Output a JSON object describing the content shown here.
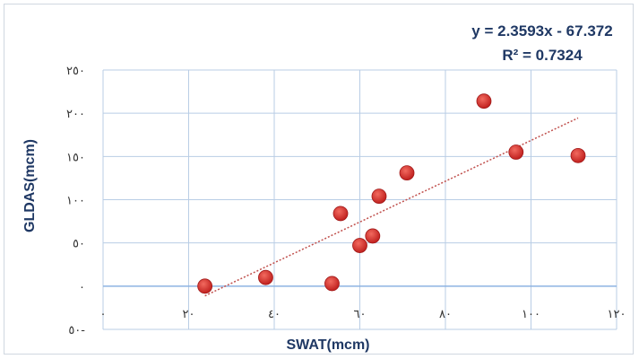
{
  "chart_data": {
    "type": "scatter",
    "xlabel": "SWAT(mcm)",
    "ylabel": "GLDAS(mcm)",
    "xlim": [
      0,
      120
    ],
    "ylim": [
      -50,
      250
    ],
    "x_ticks": [
      {
        "value": 0,
        "label": "٠"
      },
      {
        "value": 20,
        "label": "٢٠"
      },
      {
        "value": 40,
        "label": "٤٠"
      },
      {
        "value": 60,
        "label": "٦٠"
      },
      {
        "value": 80,
        "label": "٨٠"
      },
      {
        "value": 100,
        "label": "١٠٠"
      },
      {
        "value": 120,
        "label": "١٢٠"
      }
    ],
    "y_ticks": [
      {
        "value": -50,
        "label": "٥٠-"
      },
      {
        "value": 0,
        "label": "٠"
      },
      {
        "value": 50,
        "label": "٥٠"
      },
      {
        "value": 100,
        "label": "١٠٠"
      },
      {
        "value": 150,
        "label": "١٥٠"
      },
      {
        "value": 200,
        "label": "٢٠٠"
      },
      {
        "value": 250,
        "label": "٢٥٠"
      }
    ],
    "grid": true,
    "points": [
      {
        "x": 23.8,
        "y": 0
      },
      {
        "x": 38,
        "y": 10
      },
      {
        "x": 53.5,
        "y": 3
      },
      {
        "x": 55.5,
        "y": 84
      },
      {
        "x": 60,
        "y": 47
      },
      {
        "x": 63,
        "y": 58
      },
      {
        "x": 64.5,
        "y": 104
      },
      {
        "x": 71,
        "y": 131
      },
      {
        "x": 89,
        "y": 214
      },
      {
        "x": 96.5,
        "y": 155
      },
      {
        "x": 111,
        "y": 151
      }
    ],
    "trendline": {
      "equation": "y = 2.3593x - 67.372",
      "r_squared": "R² = 0.7324",
      "slope": 2.3593,
      "intercept": -67.372,
      "x_range": [
        23.8,
        111
      ],
      "color": "#c0504d",
      "style": "dotted"
    },
    "marker_color": "#c0201e",
    "grid_color": "#b9cde5",
    "axis_color": "#8db3e2"
  }
}
